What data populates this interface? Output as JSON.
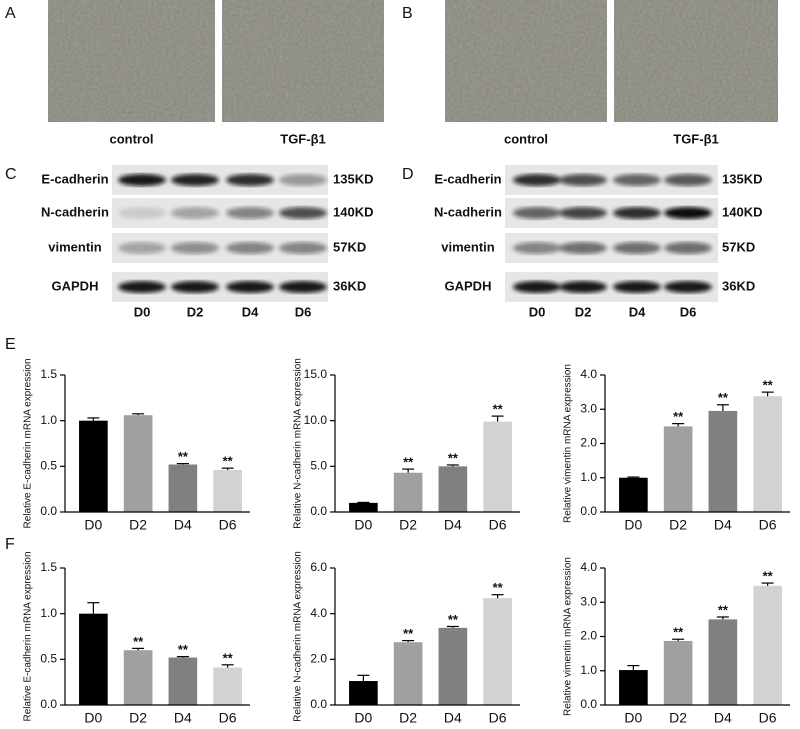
{
  "figure": {
    "micrographs": [
      {
        "letter": "A",
        "captions": [
          "control",
          "TGF-β1"
        ]
      },
      {
        "letter": "B",
        "captions": [
          "control",
          "TGF-β1"
        ]
      }
    ],
    "blots": [
      {
        "letter": "C",
        "proteins": [
          "E-cadherin",
          "N-cadherin",
          "vimentin",
          "GAPDH"
        ],
        "weights": [
          "135KD",
          "140KD",
          "57KD",
          "36KD"
        ],
        "lanes": [
          "D0",
          "D2",
          "D4",
          "D6"
        ]
      },
      {
        "letter": "D",
        "proteins": [
          "E-cadherin",
          "N-cadherin",
          "vimentin",
          "GAPDH"
        ],
        "weights": [
          "135KD",
          "140KD",
          "57KD",
          "36KD"
        ],
        "lanes": [
          "D0",
          "D2",
          "D4",
          "D6"
        ]
      }
    ],
    "chart_rows": [
      "E",
      "F"
    ]
  },
  "chart_data": [
    {
      "type": "bar",
      "ylabel": "Relative E-cadherin mRNA expression",
      "categories": [
        "D0",
        "D2",
        "D4",
        "D6"
      ],
      "values": [
        1.0,
        1.06,
        0.52,
        0.46
      ],
      "errors": [
        0.03,
        0.015,
        0.01,
        0.02
      ],
      "colors": [
        "#000000",
        "#a0a0a0",
        "#808080",
        "#d2d2d2"
      ],
      "significance": [
        null,
        null,
        "**",
        "**"
      ],
      "ylim": [
        0,
        1.5
      ],
      "yticks": [
        {
          "value": 0,
          "label": "0.0"
        },
        {
          "value": 0.5,
          "label": "0.5"
        },
        {
          "value": 1,
          "label": "1.0"
        },
        {
          "value": 1.5,
          "label": "1.5"
        }
      ]
    },
    {
      "type": "bar",
      "ylabel": "Relative N-cadherin mRNA expression",
      "categories": [
        "D0",
        "D2",
        "D4",
        "D6"
      ],
      "values": [
        1.0,
        4.3,
        5.0,
        9.9
      ],
      "errors": [
        0.05,
        0.4,
        0.15,
        0.6
      ],
      "colors": [
        "#000000",
        "#a0a0a0",
        "#808080",
        "#d2d2d2"
      ],
      "significance": [
        null,
        "**",
        "**",
        "**"
      ],
      "ylim": [
        0,
        15
      ],
      "yticks": [
        {
          "value": 0,
          "label": "0.0"
        },
        {
          "value": 5,
          "label": "5.0"
        },
        {
          "value": 10,
          "label": "10.0"
        },
        {
          "value": 15,
          "label": "15.0"
        }
      ]
    },
    {
      "type": "bar",
      "ylabel": "Relative vimentin mRNA expression",
      "categories": [
        "D0",
        "D2",
        "D4",
        "D6"
      ],
      "values": [
        1.0,
        2.5,
        2.95,
        3.38
      ],
      "errors": [
        0.02,
        0.08,
        0.18,
        0.12
      ],
      "colors": [
        "#000000",
        "#a0a0a0",
        "#808080",
        "#d2d2d2"
      ],
      "significance": [
        null,
        "**",
        "**",
        "**"
      ],
      "ylim": [
        0,
        4
      ],
      "yticks": [
        {
          "value": 0,
          "label": "0.0"
        },
        {
          "value": 1,
          "label": "1.0"
        },
        {
          "value": 2,
          "label": "2.0"
        },
        {
          "value": 3,
          "label": "3.0"
        },
        {
          "value": 4,
          "label": "4.0"
        }
      ]
    },
    {
      "type": "bar",
      "ylabel": "Relative E-cadherin mRNA expression",
      "categories": [
        "D0",
        "D2",
        "D4",
        "D6"
      ],
      "values": [
        1.0,
        0.6,
        0.52,
        0.41
      ],
      "errors": [
        0.12,
        0.02,
        0.01,
        0.03
      ],
      "colors": [
        "#000000",
        "#a0a0a0",
        "#808080",
        "#d2d2d2"
      ],
      "significance": [
        null,
        "**",
        "**",
        "**"
      ],
      "ylim": [
        0,
        1.5
      ],
      "yticks": [
        {
          "value": 0,
          "label": "0.0"
        },
        {
          "value": 0.5,
          "label": "0.5"
        },
        {
          "value": 1,
          "label": "1.0"
        },
        {
          "value": 1.5,
          "label": "1.5"
        }
      ]
    },
    {
      "type": "bar",
      "ylabel": "Relative N-cadherin mRNA expression",
      "categories": [
        "D0",
        "D2",
        "D4",
        "D6"
      ],
      "values": [
        1.05,
        2.75,
        3.38,
        4.68
      ],
      "errors": [
        0.25,
        0.07,
        0.06,
        0.15
      ],
      "colors": [
        "#000000",
        "#a0a0a0",
        "#808080",
        "#d2d2d2"
      ],
      "significance": [
        null,
        "**",
        "**",
        "**"
      ],
      "ylim": [
        0,
        6
      ],
      "yticks": [
        {
          "value": 0,
          "label": "0.0"
        },
        {
          "value": 2,
          "label": "2.0"
        },
        {
          "value": 4,
          "label": "4.0"
        },
        {
          "value": 6,
          "label": "6.0"
        }
      ]
    },
    {
      "type": "bar",
      "ylabel": "Relative vimentin mRNA expression",
      "categories": [
        "D0",
        "D2",
        "D4",
        "D6"
      ],
      "values": [
        1.02,
        1.87,
        2.5,
        3.48
      ],
      "errors": [
        0.13,
        0.05,
        0.07,
        0.08
      ],
      "colors": [
        "#000000",
        "#a0a0a0",
        "#808080",
        "#d2d2d2"
      ],
      "significance": [
        null,
        "**",
        "**",
        "**"
      ],
      "ylim": [
        0,
        4
      ],
      "yticks": [
        {
          "value": 0,
          "label": "0.0"
        },
        {
          "value": 1,
          "label": "1.0"
        },
        {
          "value": 2,
          "label": "2.0"
        },
        {
          "value": 3,
          "label": "3.0"
        },
        {
          "value": 4,
          "label": "4.0"
        }
      ]
    }
  ]
}
